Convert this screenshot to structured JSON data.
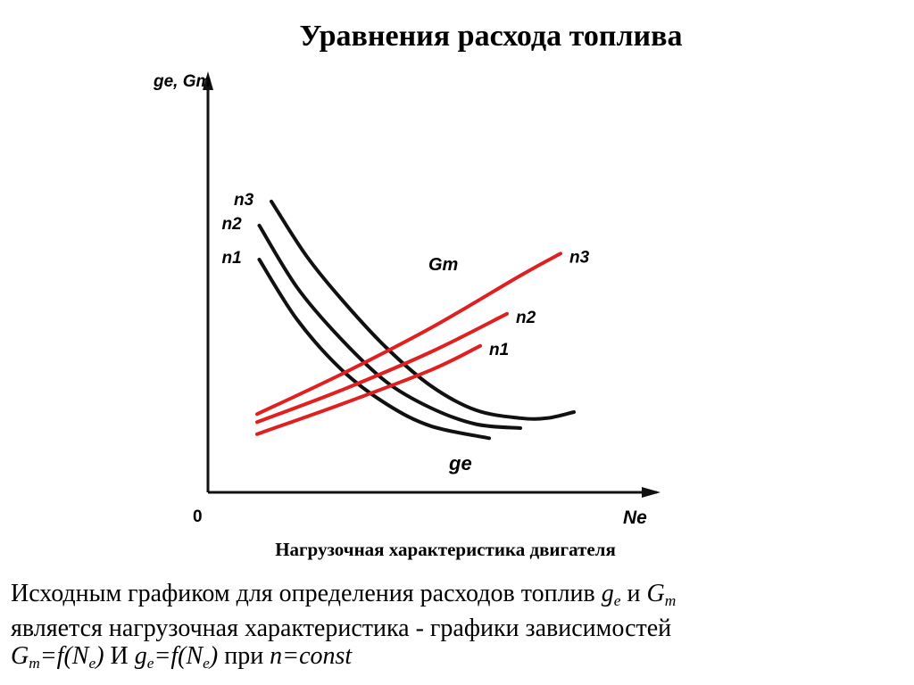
{
  "title": "Уравнения расхода топлива",
  "caption": "Нагрузочная характеристика двигателя",
  "paragraph": {
    "line1": "Исходным графиком для определения расходов топлив",
    "line1_sym1": "g",
    "line1_sym1_sub": "e",
    "line1_and": "и",
    "line1_sym2": "G",
    "line1_sym2_sub": "т",
    "line2": "является нагрузочная характеристика - графики зависимостей",
    "line3_f1_sym": "G",
    "line3_f1_sub": "т",
    "line3_f1_eq": "=f(N",
    "line3_f1_arg_sub": "e",
    "line3_f1_close": ")",
    "line3_and": "И",
    "line3_f2_sym": "g",
    "line3_f2_sub": "e",
    "line3_f2_eq": "=f(N",
    "line3_f2_arg_sub": "e",
    "line3_f2_close": ")",
    "line3_tail_prefix": "при",
    "line3_tail": "n=const"
  },
  "chart_data": {
    "type": "line",
    "title": "",
    "xlabel": "Ne",
    "ylabel": "ge, Gт",
    "origin_label": "0",
    "xlim": [
      0,
      10
    ],
    "ylim": [
      0,
      10
    ],
    "grid": false,
    "legend": "none",
    "colors": {
      "ge": "#111111",
      "Gt": "#e02020",
      "axis": "#111111"
    },
    "curve_group_labels": {
      "ge": "ge",
      "Gt": "Gт"
    },
    "series": [
      {
        "name": "n3",
        "group": "ge",
        "x": [
          1.42,
          2.2,
          3.0,
          4.0,
          5.0,
          6.0,
          7.0,
          7.6,
          8.2
        ],
        "y": [
          7.25,
          5.9,
          4.8,
          3.6,
          2.65,
          2.05,
          1.85,
          1.85,
          2.0
        ]
      },
      {
        "name": "n2",
        "group": "ge",
        "x": [
          1.15,
          2.0,
          3.0,
          4.0,
          5.0,
          6.0,
          7.0
        ],
        "y": [
          6.65,
          5.1,
          3.8,
          2.75,
          2.1,
          1.7,
          1.6
        ]
      },
      {
        "name": "n1",
        "group": "ge",
        "x": [
          1.15,
          2.0,
          3.0,
          4.0,
          5.0,
          6.3
        ],
        "y": [
          5.8,
          4.3,
          3.05,
          2.2,
          1.65,
          1.35
        ]
      },
      {
        "name": "n3",
        "group": "Gt",
        "x": [
          1.1,
          3.0,
          5.0,
          7.0,
          7.9
        ],
        "y": [
          1.95,
          2.95,
          4.1,
          5.4,
          5.95
        ]
      },
      {
        "name": "n2",
        "group": "Gt",
        "x": [
          1.1,
          3.0,
          5.0,
          6.7
        ],
        "y": [
          1.75,
          2.55,
          3.5,
          4.45
        ]
      },
      {
        "name": "n1",
        "group": "Gt",
        "x": [
          1.1,
          3.0,
          5.0,
          6.1
        ],
        "y": [
          1.45,
          2.2,
          3.05,
          3.65
        ]
      }
    ]
  }
}
